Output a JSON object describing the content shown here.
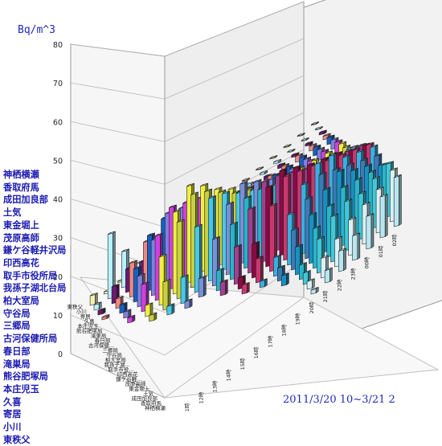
{
  "chart_data": {
    "type": "bar",
    "title": "",
    "unit_label": "Bq/m^3",
    "period_label": "2011/3/20 10~3/21 2",
    "ylim": [
      0,
      80
    ],
    "yticks": [
      0,
      10,
      20,
      30,
      40,
      50,
      60,
      70,
      80
    ],
    "categories": [
      "10時",
      "11時",
      "12時",
      "13時",
      "14時",
      "15時",
      "16時",
      "17時",
      "18時",
      "19時",
      "20時",
      "21時",
      "22時",
      "23時",
      "00時",
      "01時",
      "02時"
    ],
    "series": [
      {
        "name": "神栖横瀬",
        "values": [
          null,
          null,
          null,
          null,
          null,
          null,
          null,
          null,
          null,
          null,
          1,
          3,
          5,
          6,
          8,
          10,
          12
        ]
      },
      {
        "name": "香取府馬",
        "values": [
          null,
          null,
          null,
          null,
          null,
          null,
          null,
          null,
          null,
          null,
          2,
          5,
          7,
          9,
          10,
          11,
          13
        ]
      },
      {
        "name": "成田加良部",
        "values": [
          null,
          null,
          null,
          null,
          null,
          null,
          null,
          null,
          null,
          null,
          3,
          9,
          12,
          13,
          12,
          13,
          14
        ]
      },
      {
        "name": "土気",
        "values": [
          null,
          null,
          null,
          null,
          null,
          null,
          null,
          null,
          null,
          null,
          4,
          11,
          14,
          16,
          15,
          14,
          13
        ]
      },
      {
        "name": "東金堀上",
        "values": [
          null,
          null,
          null,
          null,
          null,
          null,
          null,
          null,
          null,
          3,
          8,
          14,
          18,
          20,
          17,
          15,
          12
        ]
      },
      {
        "name": "茂原高師",
        "values": [
          null,
          null,
          null,
          null,
          null,
          null,
          null,
          null,
          null,
          4,
          12,
          18,
          22,
          20,
          18,
          16,
          14
        ]
      },
      {
        "name": "鎌ケ谷軽井沢局",
        "values": [
          null,
          null,
          null,
          null,
          null,
          null,
          null,
          null,
          2,
          6,
          16,
          22,
          25,
          24,
          20,
          18,
          16
        ]
      },
      {
        "name": "印西高花",
        "values": [
          null,
          null,
          null,
          null,
          null,
          null,
          null,
          3,
          8,
          22,
          28,
          26,
          24,
          22,
          20,
          18,
          16
        ]
      },
      {
        "name": "取手市役所局",
        "values": [
          null,
          null,
          null,
          null,
          null,
          null,
          null,
          4,
          12,
          28,
          30,
          27,
          24,
          22,
          20,
          17,
          15
        ]
      },
      {
        "name": "我孫子湖北台局",
        "values": [
          null,
          null,
          null,
          null,
          null,
          null,
          5,
          14,
          24,
          30,
          28,
          25,
          22,
          20,
          18,
          16,
          14
        ]
      },
      {
        "name": "柏大室局",
        "values": [
          null,
          null,
          null,
          null,
          null,
          null,
          8,
          22,
          28,
          27,
          24,
          21,
          19,
          17,
          15,
          13,
          12
        ]
      },
      {
        "name": "守谷局",
        "values": [
          null,
          null,
          null,
          null,
          3,
          8,
          20,
          30,
          34,
          30,
          26,
          22,
          19,
          16,
          14,
          12,
          11
        ]
      },
      {
        "name": "三郷局",
        "values": [
          null,
          null,
          null,
          4,
          12,
          30,
          38,
          35,
          30,
          26,
          22,
          18,
          16,
          14,
          12,
          10,
          9
        ]
      },
      {
        "name": "古河保健所局",
        "values": [
          null,
          null,
          3,
          14,
          38,
          46,
          42,
          36,
          30,
          26,
          22,
          18,
          15,
          13,
          11,
          10,
          8
        ]
      },
      {
        "name": "春日部",
        "values": [
          null,
          null,
          6,
          26,
          44,
          52,
          46,
          38,
          32,
          26,
          21,
          18,
          15,
          13,
          11,
          9,
          8
        ]
      },
      {
        "name": "滝巣局",
        "values": [
          null,
          3,
          16,
          38,
          48,
          44,
          40,
          34,
          28,
          22,
          18,
          15,
          12,
          10,
          9,
          8,
          7
        ]
      },
      {
        "name": "熊谷肥塚局",
        "values": [
          null,
          4,
          20,
          36,
          46,
          42,
          36,
          30,
          25,
          20,
          16,
          13,
          11,
          9,
          8,
          7,
          6
        ]
      },
      {
        "name": "本庄児玉",
        "values": [
          null,
          6,
          24,
          40,
          44,
          38,
          32,
          26,
          22,
          18,
          15,
          12,
          10,
          8,
          7,
          6,
          5
        ]
      },
      {
        "name": "久喜",
        "values": [
          2,
          8,
          28,
          36,
          30,
          24,
          20,
          16,
          13,
          11,
          9,
          8,
          7,
          6,
          5,
          4,
          3
        ]
      },
      {
        "name": "寄居",
        "values": [
          4,
          16,
          22,
          18,
          14,
          11,
          9,
          8,
          7,
          6,
          5,
          4,
          3,
          3,
          2,
          2,
          2
        ]
      },
      {
        "name": "小川",
        "values": [
          6,
          72,
          40,
          14,
          8,
          6,
          5,
          4,
          3,
          3,
          2,
          2,
          2,
          2,
          1,
          1,
          1
        ]
      },
      {
        "name": "東秩父",
        "values": [
          13,
          3,
          2,
          1,
          1,
          1,
          1,
          1,
          1,
          1,
          1,
          1,
          1,
          1,
          1,
          1,
          1
        ]
      }
    ],
    "depth_labels": [
      "神栖横瀬",
      "香取府馬",
      "成田加良部",
      "土気",
      "東金堀上",
      "茂原高師",
      "鎌ケ谷軽...",
      "印西高花",
      "取手市役...",
      "我孫子湖...",
      "柏大室局",
      "守谷局",
      "三郷局",
      "古河保健...",
      "春日部",
      "滝巣局",
      "熊谷肥塚局",
      "本庄児玉",
      "久喜",
      "寄居",
      "小川",
      "東秩父"
    ],
    "colors": [
      "#b8e6f0",
      "#d8f0f6",
      "#40c8d8",
      "#2ab4cc",
      "#1890c0",
      "#3c7ab8",
      "#3ab0e0",
      "#c83870",
      "#8a0a40",
      "#a04090",
      "#28b4c8",
      "#7890d8",
      "#48c8e8",
      "#c8d040",
      "#f0f040",
      "#d040e0",
      "#8080e0",
      "#1860c0",
      "#f08880",
      "#6a1a70",
      "#b8f0ff",
      "#f0f0b0"
    ],
    "grid": true
  }
}
